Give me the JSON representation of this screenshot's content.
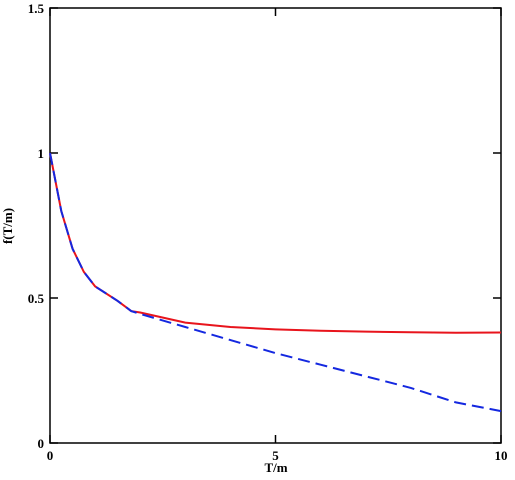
{
  "chart_data": {
    "type": "line",
    "x_label": "T/m",
    "y_label": "f(T/m)",
    "x": [
      0,
      0.25,
      0.5,
      0.75,
      1,
      1.5,
      1.8,
      2,
      3,
      4,
      5,
      6,
      7,
      8,
      9,
      10
    ],
    "series": [
      {
        "color": "#e8141c",
        "dash": "solid",
        "values": [
          1.0,
          0.8,
          0.67,
          0.59,
          0.54,
          0.49,
          0.455,
          0.45,
          0.415,
          0.4,
          0.392,
          0.387,
          0.384,
          0.382,
          0.38,
          0.381
        ]
      },
      {
        "color": "#1428e0",
        "dash": "dashed",
        "values": [
          1.0,
          0.8,
          0.67,
          0.59,
          0.54,
          0.49,
          0.455,
          0.445,
          0.4,
          0.355,
          0.31,
          0.27,
          0.23,
          0.19,
          0.14,
          0.11
        ]
      }
    ],
    "xlim": [
      0,
      10
    ],
    "ylim": [
      0,
      1.5
    ],
    "xticks": [
      0,
      5,
      10
    ],
    "yticks": [
      0,
      0.5,
      1,
      1.5
    ]
  }
}
